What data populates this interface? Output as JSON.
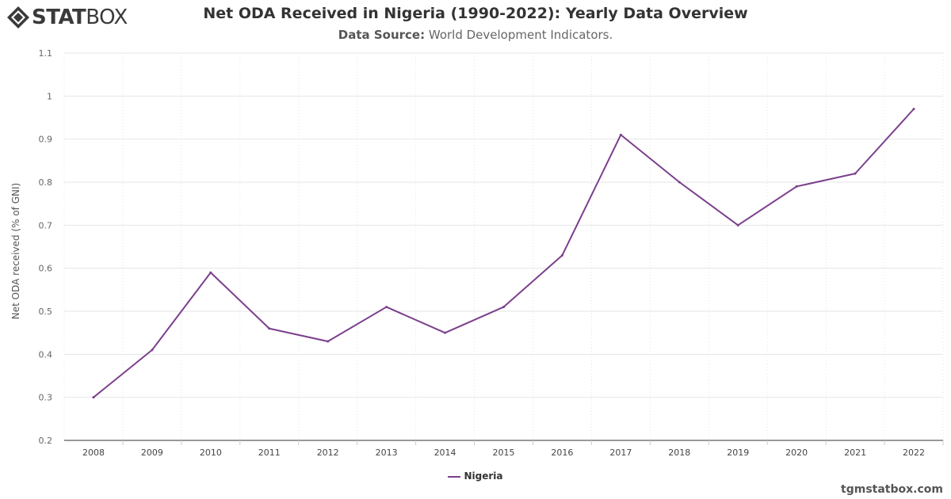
{
  "brand": {
    "logo_bold": "STAT",
    "logo_light": "BOX",
    "logo_icon": "statbox-diamond-icon",
    "credit": "tgmstatbox.com"
  },
  "header": {
    "title": "Net ODA Received in Nigeria (1990-2022): Yearly Data Overview",
    "subtitle_label": "Data Source:",
    "subtitle_value": "World Development Indicators."
  },
  "colors": {
    "series": "#7b3f8c",
    "grid": "#e6e6e6",
    "axis": "#333333"
  },
  "chart_data": {
    "type": "line",
    "title": "Net ODA Received in Nigeria (1990-2022): Yearly Data Overview",
    "xlabel": "",
    "ylabel": "Net ODA received (% of GNI)",
    "x": [
      "2008",
      "2009",
      "2010",
      "2011",
      "2012",
      "2013",
      "2014",
      "2015",
      "2016",
      "2017",
      "2018",
      "2019",
      "2020",
      "2021",
      "2022"
    ],
    "series": [
      {
        "name": "Nigeria",
        "values": [
          0.3,
          0.41,
          0.59,
          0.46,
          0.43,
          0.51,
          0.45,
          0.51,
          0.63,
          0.91,
          0.8,
          0.7,
          0.79,
          0.82,
          0.97
        ]
      }
    ],
    "ylim": [
      0.2,
      1.1
    ],
    "yticks": [
      "0.2",
      "0.3",
      "0.4",
      "0.5",
      "0.6",
      "0.7",
      "0.8",
      "0.9",
      "1",
      "1.1"
    ],
    "grid": true,
    "legend": "bottom-center"
  }
}
